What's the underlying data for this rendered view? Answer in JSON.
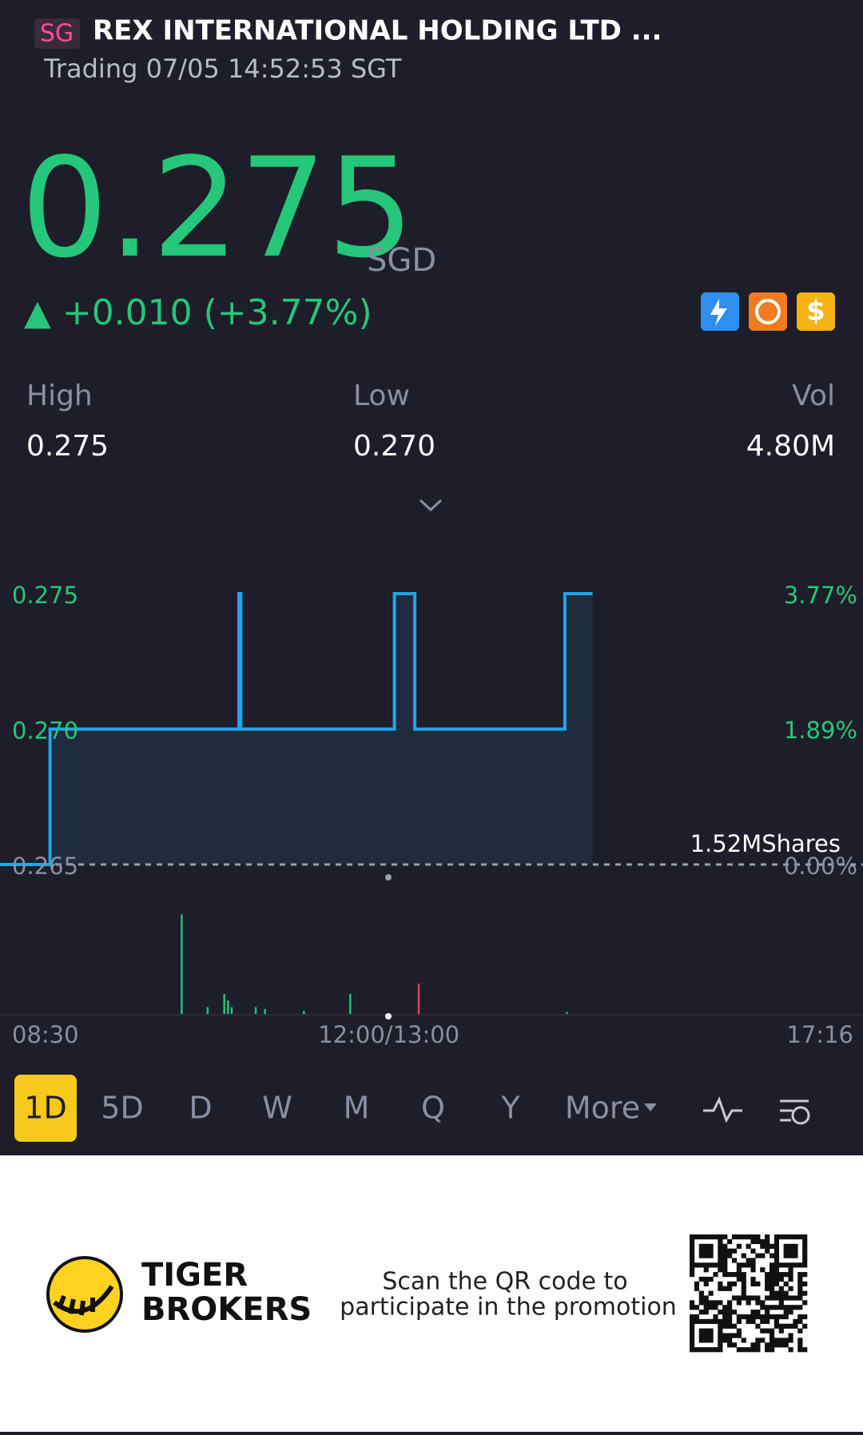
{
  "header": {
    "market": "SG",
    "name": "REX INTERNATIONAL HOLDING LTD ...",
    "status": "Trading 07/05 14:52:53 SGT"
  },
  "quote": {
    "price": "0.275",
    "currency": "SGD",
    "change": "▲ +0.010 (+3.77%)"
  },
  "stats": [
    {
      "label": "High",
      "value": "0.275"
    },
    {
      "label": "Low",
      "value": "0.270"
    },
    {
      "label": "Vol",
      "value": "4.80M"
    }
  ],
  "chart_data": {
    "type": "line",
    "x": [
      "08:30",
      "08:57",
      "08:57",
      "10:39",
      "10:39",
      "10:40",
      "10:40",
      "13:03",
      "13:03",
      "13:14",
      "13:14",
      "14:35",
      "14:35",
      "14:50"
    ],
    "series": [
      {
        "name": "Price",
        "color": "#1ea7ea",
        "values": [
          0.265,
          0.265,
          0.27,
          0.27,
          0.275,
          0.275,
          0.27,
          0.27,
          0.275,
          0.275,
          0.27,
          0.27,
          0.275,
          0.275
        ]
      }
    ],
    "xticks": [
      "08:30",
      "12:00/13:00",
      "17:16"
    ],
    "ylim": [
      0.265,
      0.275
    ],
    "yticks": [
      0.265,
      {
        "value": 0.27,
        "label": "0.270"
      },
      0.275
    ],
    "y2lim": [
      0,
      3.77
    ],
    "y2ticks": [
      {
        "value": 0,
        "label": "0.00%"
      },
      {
        "value": 1.89,
        "label": "1.89%"
      },
      {
        "value": 3.77,
        "label": "3.77%"
      }
    ],
    "volume": {
      "max_label": "1.52MShares",
      "ylim": [
        0,
        1520000
      ],
      "x": [
        "10:08",
        "10:22",
        "10:31",
        "10:33",
        "10:35",
        "10:48",
        "10:53",
        "11:14",
        "11:39",
        "13:16",
        "14:36"
      ],
      "values": [
        1060000,
        80000,
        220000,
        150000,
        80000,
        80000,
        60000,
        40000,
        220000,
        330000,
        30000
      ],
      "colors": [
        "#22c17a",
        "#22c17a",
        "#22c17a",
        "#22c17a",
        "#22c17a",
        "#22c17a",
        "#22c17a",
        "#22c17a",
        "#22c17a",
        "#e0424a",
        "#22c17a"
      ]
    }
  },
  "tabs": [
    "1D",
    "5D",
    "D",
    "W",
    "M",
    "Q",
    "Y",
    "More"
  ],
  "footer": {
    "brand_line1": "TIGER",
    "brand_line2": "BROKERS",
    "promo_line1": "Scan the QR code to",
    "promo_line2": "participate in the promotion"
  }
}
